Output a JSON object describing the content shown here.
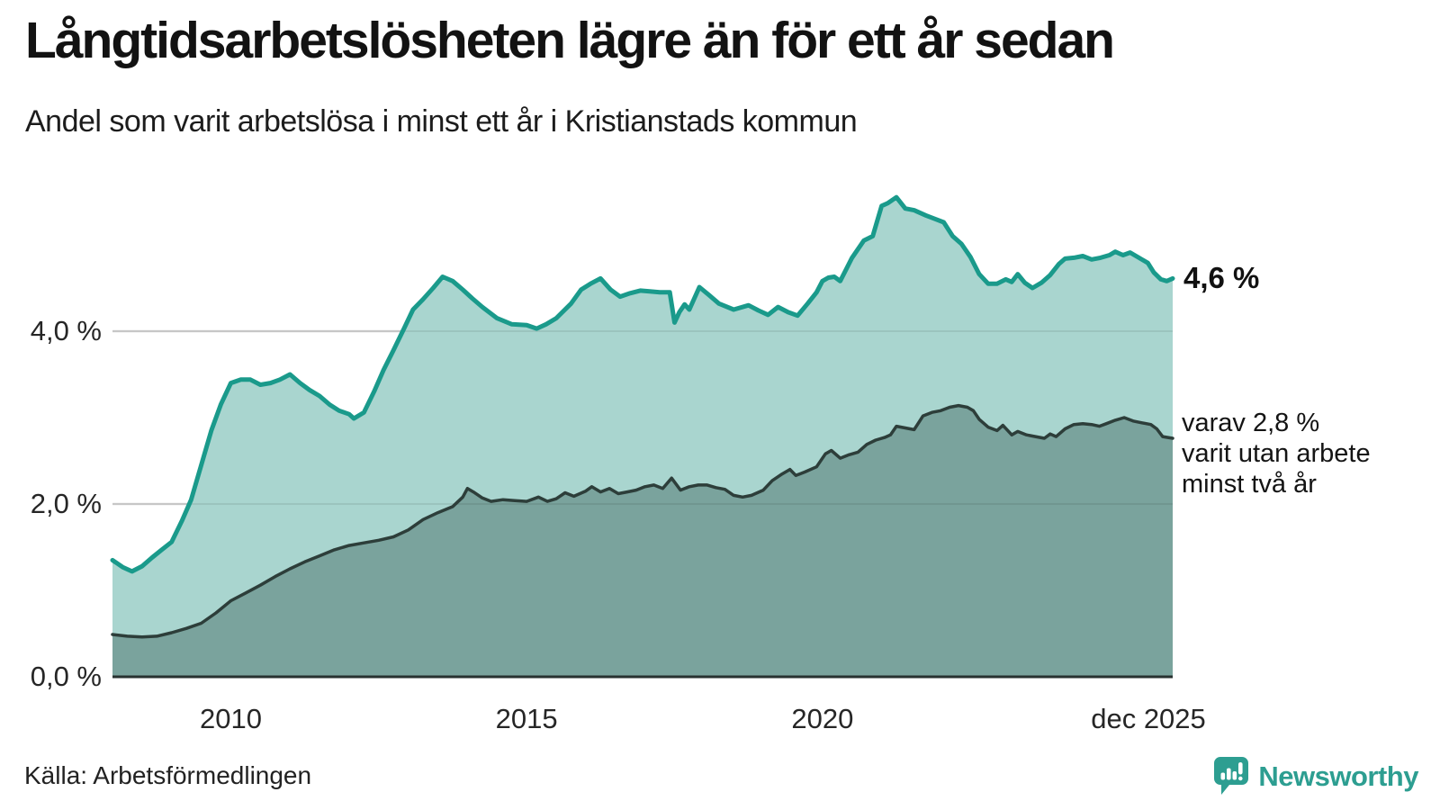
{
  "header": {
    "title": "Långtidsarbetslösheten lägre än för ett år sedan",
    "subtitle": "Andel som varit arbetslösa i minst ett år i Kristianstads kommun"
  },
  "colors": {
    "line_total": "#1A9A8B",
    "fill_total": "#A9D5CF",
    "line_twoyear": "#2D3E3A",
    "fill_twoyear": "#7AA39D",
    "grid": "#D8D8D8",
    "axis": "#283230",
    "brand_teal": "#2D9E91"
  },
  "chart_data": {
    "type": "area",
    "title": "Långtidsarbetslösheten lägre än för ett år sedan",
    "subtitle": "Andel som varit arbetslösa i minst ett år i Kristianstads kommun",
    "x_axis": {
      "range": [
        2008.0,
        2025.92
      ],
      "ticks": [
        {
          "label": "2010",
          "year": 2010
        },
        {
          "label": "2015",
          "year": 2015
        },
        {
          "label": "2020",
          "year": 2020
        },
        {
          "label": "dec 2025",
          "year": 2025.92
        }
      ]
    },
    "y_axis": {
      "range": [
        0,
        5.9
      ],
      "unit": "%",
      "grid": true,
      "ticks": [
        {
          "label": "0,0 %",
          "value": 0
        },
        {
          "label": "2,0 %",
          "value": 2
        },
        {
          "label": "4,0 %",
          "value": 4
        }
      ]
    },
    "legend_position": "end-of-line labels",
    "series": [
      {
        "name": "Arbetslösa minst ett år",
        "end_label": "4,6 %",
        "end_value": 4.6,
        "points": [
          [
            2008.0,
            1.35
          ],
          [
            2008.17,
            1.27
          ],
          [
            2008.33,
            1.22
          ],
          [
            2008.5,
            1.28
          ],
          [
            2008.67,
            1.38
          ],
          [
            2008.83,
            1.47
          ],
          [
            2009.0,
            1.56
          ],
          [
            2009.17,
            1.8
          ],
          [
            2009.33,
            2.05
          ],
          [
            2009.5,
            2.45
          ],
          [
            2009.67,
            2.85
          ],
          [
            2009.83,
            3.15
          ],
          [
            2010.0,
            3.4
          ],
          [
            2010.17,
            3.44
          ],
          [
            2010.33,
            3.44
          ],
          [
            2010.5,
            3.38
          ],
          [
            2010.67,
            3.4
          ],
          [
            2010.83,
            3.44
          ],
          [
            2011.0,
            3.5
          ],
          [
            2011.17,
            3.4
          ],
          [
            2011.33,
            3.32
          ],
          [
            2011.5,
            3.25
          ],
          [
            2011.67,
            3.15
          ],
          [
            2011.83,
            3.08
          ],
          [
            2012.0,
            3.04
          ],
          [
            2012.08,
            2.99
          ],
          [
            2012.25,
            3.06
          ],
          [
            2012.42,
            3.3
          ],
          [
            2012.58,
            3.55
          ],
          [
            2012.75,
            3.78
          ],
          [
            2012.92,
            4.02
          ],
          [
            2013.08,
            4.25
          ],
          [
            2013.25,
            4.37
          ],
          [
            2013.42,
            4.5
          ],
          [
            2013.58,
            4.63
          ],
          [
            2013.75,
            4.58
          ],
          [
            2013.92,
            4.48
          ],
          [
            2014.08,
            4.38
          ],
          [
            2014.25,
            4.28
          ],
          [
            2014.5,
            4.15
          ],
          [
            2014.75,
            4.08
          ],
          [
            2015.0,
            4.07
          ],
          [
            2015.17,
            4.03
          ],
          [
            2015.33,
            4.08
          ],
          [
            2015.5,
            4.15
          ],
          [
            2015.75,
            4.32
          ],
          [
            2015.92,
            4.48
          ],
          [
            2016.08,
            4.55
          ],
          [
            2016.25,
            4.61
          ],
          [
            2016.42,
            4.48
          ],
          [
            2016.58,
            4.4
          ],
          [
            2016.75,
            4.44
          ],
          [
            2016.92,
            4.47
          ],
          [
            2017.08,
            4.46
          ],
          [
            2017.25,
            4.45
          ],
          [
            2017.42,
            4.45
          ],
          [
            2017.5,
            4.1
          ],
          [
            2017.58,
            4.22
          ],
          [
            2017.67,
            4.31
          ],
          [
            2017.75,
            4.25
          ],
          [
            2017.92,
            4.51
          ],
          [
            2018.08,
            4.42
          ],
          [
            2018.25,
            4.32
          ],
          [
            2018.5,
            4.25
          ],
          [
            2018.75,
            4.3
          ],
          [
            2018.92,
            4.24
          ],
          [
            2019.08,
            4.19
          ],
          [
            2019.25,
            4.28
          ],
          [
            2019.42,
            4.22
          ],
          [
            2019.58,
            4.18
          ],
          [
            2019.75,
            4.32
          ],
          [
            2019.9,
            4.45
          ],
          [
            2020.0,
            4.58
          ],
          [
            2020.1,
            4.62
          ],
          [
            2020.2,
            4.63
          ],
          [
            2020.3,
            4.58
          ],
          [
            2020.5,
            4.85
          ],
          [
            2020.7,
            5.05
          ],
          [
            2020.85,
            5.1
          ],
          [
            2021.0,
            5.45
          ],
          [
            2021.1,
            5.48
          ],
          [
            2021.25,
            5.55
          ],
          [
            2021.4,
            5.42
          ],
          [
            2021.55,
            5.4
          ],
          [
            2021.75,
            5.34
          ],
          [
            2021.9,
            5.3
          ],
          [
            2022.05,
            5.26
          ],
          [
            2022.2,
            5.1
          ],
          [
            2022.35,
            5.01
          ],
          [
            2022.5,
            4.86
          ],
          [
            2022.65,
            4.66
          ],
          [
            2022.8,
            4.55
          ],
          [
            2022.95,
            4.55
          ],
          [
            2023.1,
            4.6
          ],
          [
            2023.2,
            4.57
          ],
          [
            2023.3,
            4.66
          ],
          [
            2023.42,
            4.56
          ],
          [
            2023.55,
            4.5
          ],
          [
            2023.7,
            4.56
          ],
          [
            2023.85,
            4.65
          ],
          [
            2024.0,
            4.78
          ],
          [
            2024.1,
            4.84
          ],
          [
            2024.25,
            4.85
          ],
          [
            2024.4,
            4.87
          ],
          [
            2024.55,
            4.83
          ],
          [
            2024.7,
            4.85
          ],
          [
            2024.85,
            4.88
          ],
          [
            2024.95,
            4.92
          ],
          [
            2025.08,
            4.88
          ],
          [
            2025.2,
            4.91
          ],
          [
            2025.35,
            4.85
          ],
          [
            2025.5,
            4.79
          ],
          [
            2025.6,
            4.68
          ],
          [
            2025.72,
            4.6
          ],
          [
            2025.82,
            4.58
          ],
          [
            2025.92,
            4.61
          ]
        ]
      },
      {
        "name": "Arbetslösa minst två år",
        "end_label": "varav 2,8 %\nvarit utan arbete\nminst två år",
        "end_value": 2.8,
        "points": [
          [
            2008.0,
            0.49
          ],
          [
            2008.25,
            0.47
          ],
          [
            2008.5,
            0.46
          ],
          [
            2008.75,
            0.47
          ],
          [
            2009.0,
            0.51
          ],
          [
            2009.25,
            0.56
          ],
          [
            2009.5,
            0.62
          ],
          [
            2009.75,
            0.74
          ],
          [
            2010.0,
            0.88
          ],
          [
            2010.25,
            0.97
          ],
          [
            2010.5,
            1.06
          ],
          [
            2010.75,
            1.16
          ],
          [
            2011.0,
            1.25
          ],
          [
            2011.25,
            1.33
          ],
          [
            2011.5,
            1.4
          ],
          [
            2011.75,
            1.47
          ],
          [
            2012.0,
            1.52
          ],
          [
            2012.25,
            1.55
          ],
          [
            2012.5,
            1.58
          ],
          [
            2012.75,
            1.62
          ],
          [
            2013.0,
            1.7
          ],
          [
            2013.25,
            1.82
          ],
          [
            2013.5,
            1.9
          ],
          [
            2013.75,
            1.97
          ],
          [
            2013.92,
            2.08
          ],
          [
            2014.0,
            2.18
          ],
          [
            2014.1,
            2.14
          ],
          [
            2014.25,
            2.07
          ],
          [
            2014.4,
            2.03
          ],
          [
            2014.6,
            2.05
          ],
          [
            2014.8,
            2.04
          ],
          [
            2015.0,
            2.03
          ],
          [
            2015.2,
            2.08
          ],
          [
            2015.35,
            2.03
          ],
          [
            2015.5,
            2.06
          ],
          [
            2015.65,
            2.13
          ],
          [
            2015.8,
            2.09
          ],
          [
            2016.0,
            2.15
          ],
          [
            2016.1,
            2.2
          ],
          [
            2016.25,
            2.14
          ],
          [
            2016.4,
            2.18
          ],
          [
            2016.55,
            2.12
          ],
          [
            2016.7,
            2.14
          ],
          [
            2016.85,
            2.16
          ],
          [
            2017.0,
            2.2
          ],
          [
            2017.15,
            2.22
          ],
          [
            2017.3,
            2.18
          ],
          [
            2017.45,
            2.3
          ],
          [
            2017.6,
            2.16
          ],
          [
            2017.75,
            2.2
          ],
          [
            2017.9,
            2.22
          ],
          [
            2018.05,
            2.22
          ],
          [
            2018.2,
            2.19
          ],
          [
            2018.35,
            2.17
          ],
          [
            2018.5,
            2.1
          ],
          [
            2018.65,
            2.08
          ],
          [
            2018.8,
            2.1
          ],
          [
            2019.0,
            2.16
          ],
          [
            2019.15,
            2.27
          ],
          [
            2019.3,
            2.34
          ],
          [
            2019.45,
            2.4
          ],
          [
            2019.55,
            2.33
          ],
          [
            2019.7,
            2.37
          ],
          [
            2019.9,
            2.43
          ],
          [
            2020.05,
            2.58
          ],
          [
            2020.15,
            2.62
          ],
          [
            2020.3,
            2.53
          ],
          [
            2020.45,
            2.57
          ],
          [
            2020.6,
            2.6
          ],
          [
            2020.75,
            2.69
          ],
          [
            2020.9,
            2.74
          ],
          [
            2021.05,
            2.77
          ],
          [
            2021.15,
            2.8
          ],
          [
            2021.25,
            2.9
          ],
          [
            2021.4,
            2.88
          ],
          [
            2021.55,
            2.86
          ],
          [
            2021.7,
            3.02
          ],
          [
            2021.85,
            3.06
          ],
          [
            2022.0,
            3.08
          ],
          [
            2022.15,
            3.12
          ],
          [
            2022.3,
            3.14
          ],
          [
            2022.45,
            3.12
          ],
          [
            2022.55,
            3.08
          ],
          [
            2022.65,
            2.98
          ],
          [
            2022.8,
            2.89
          ],
          [
            2022.95,
            2.85
          ],
          [
            2023.05,
            2.91
          ],
          [
            2023.2,
            2.8
          ],
          [
            2023.3,
            2.84
          ],
          [
            2023.45,
            2.8
          ],
          [
            2023.6,
            2.78
          ],
          [
            2023.75,
            2.76
          ],
          [
            2023.85,
            2.81
          ],
          [
            2023.95,
            2.78
          ],
          [
            2024.1,
            2.87
          ],
          [
            2024.25,
            2.92
          ],
          [
            2024.4,
            2.93
          ],
          [
            2024.55,
            2.92
          ],
          [
            2024.68,
            2.9
          ],
          [
            2024.8,
            2.93
          ],
          [
            2024.95,
            2.97
          ],
          [
            2025.1,
            3.0
          ],
          [
            2025.25,
            2.96
          ],
          [
            2025.4,
            2.94
          ],
          [
            2025.55,
            2.92
          ],
          [
            2025.65,
            2.87
          ],
          [
            2025.75,
            2.78
          ],
          [
            2025.92,
            2.76
          ]
        ]
      }
    ]
  },
  "footer": {
    "source": "Källa: Arbetsförmedlingen",
    "brand": "Newsworthy"
  }
}
